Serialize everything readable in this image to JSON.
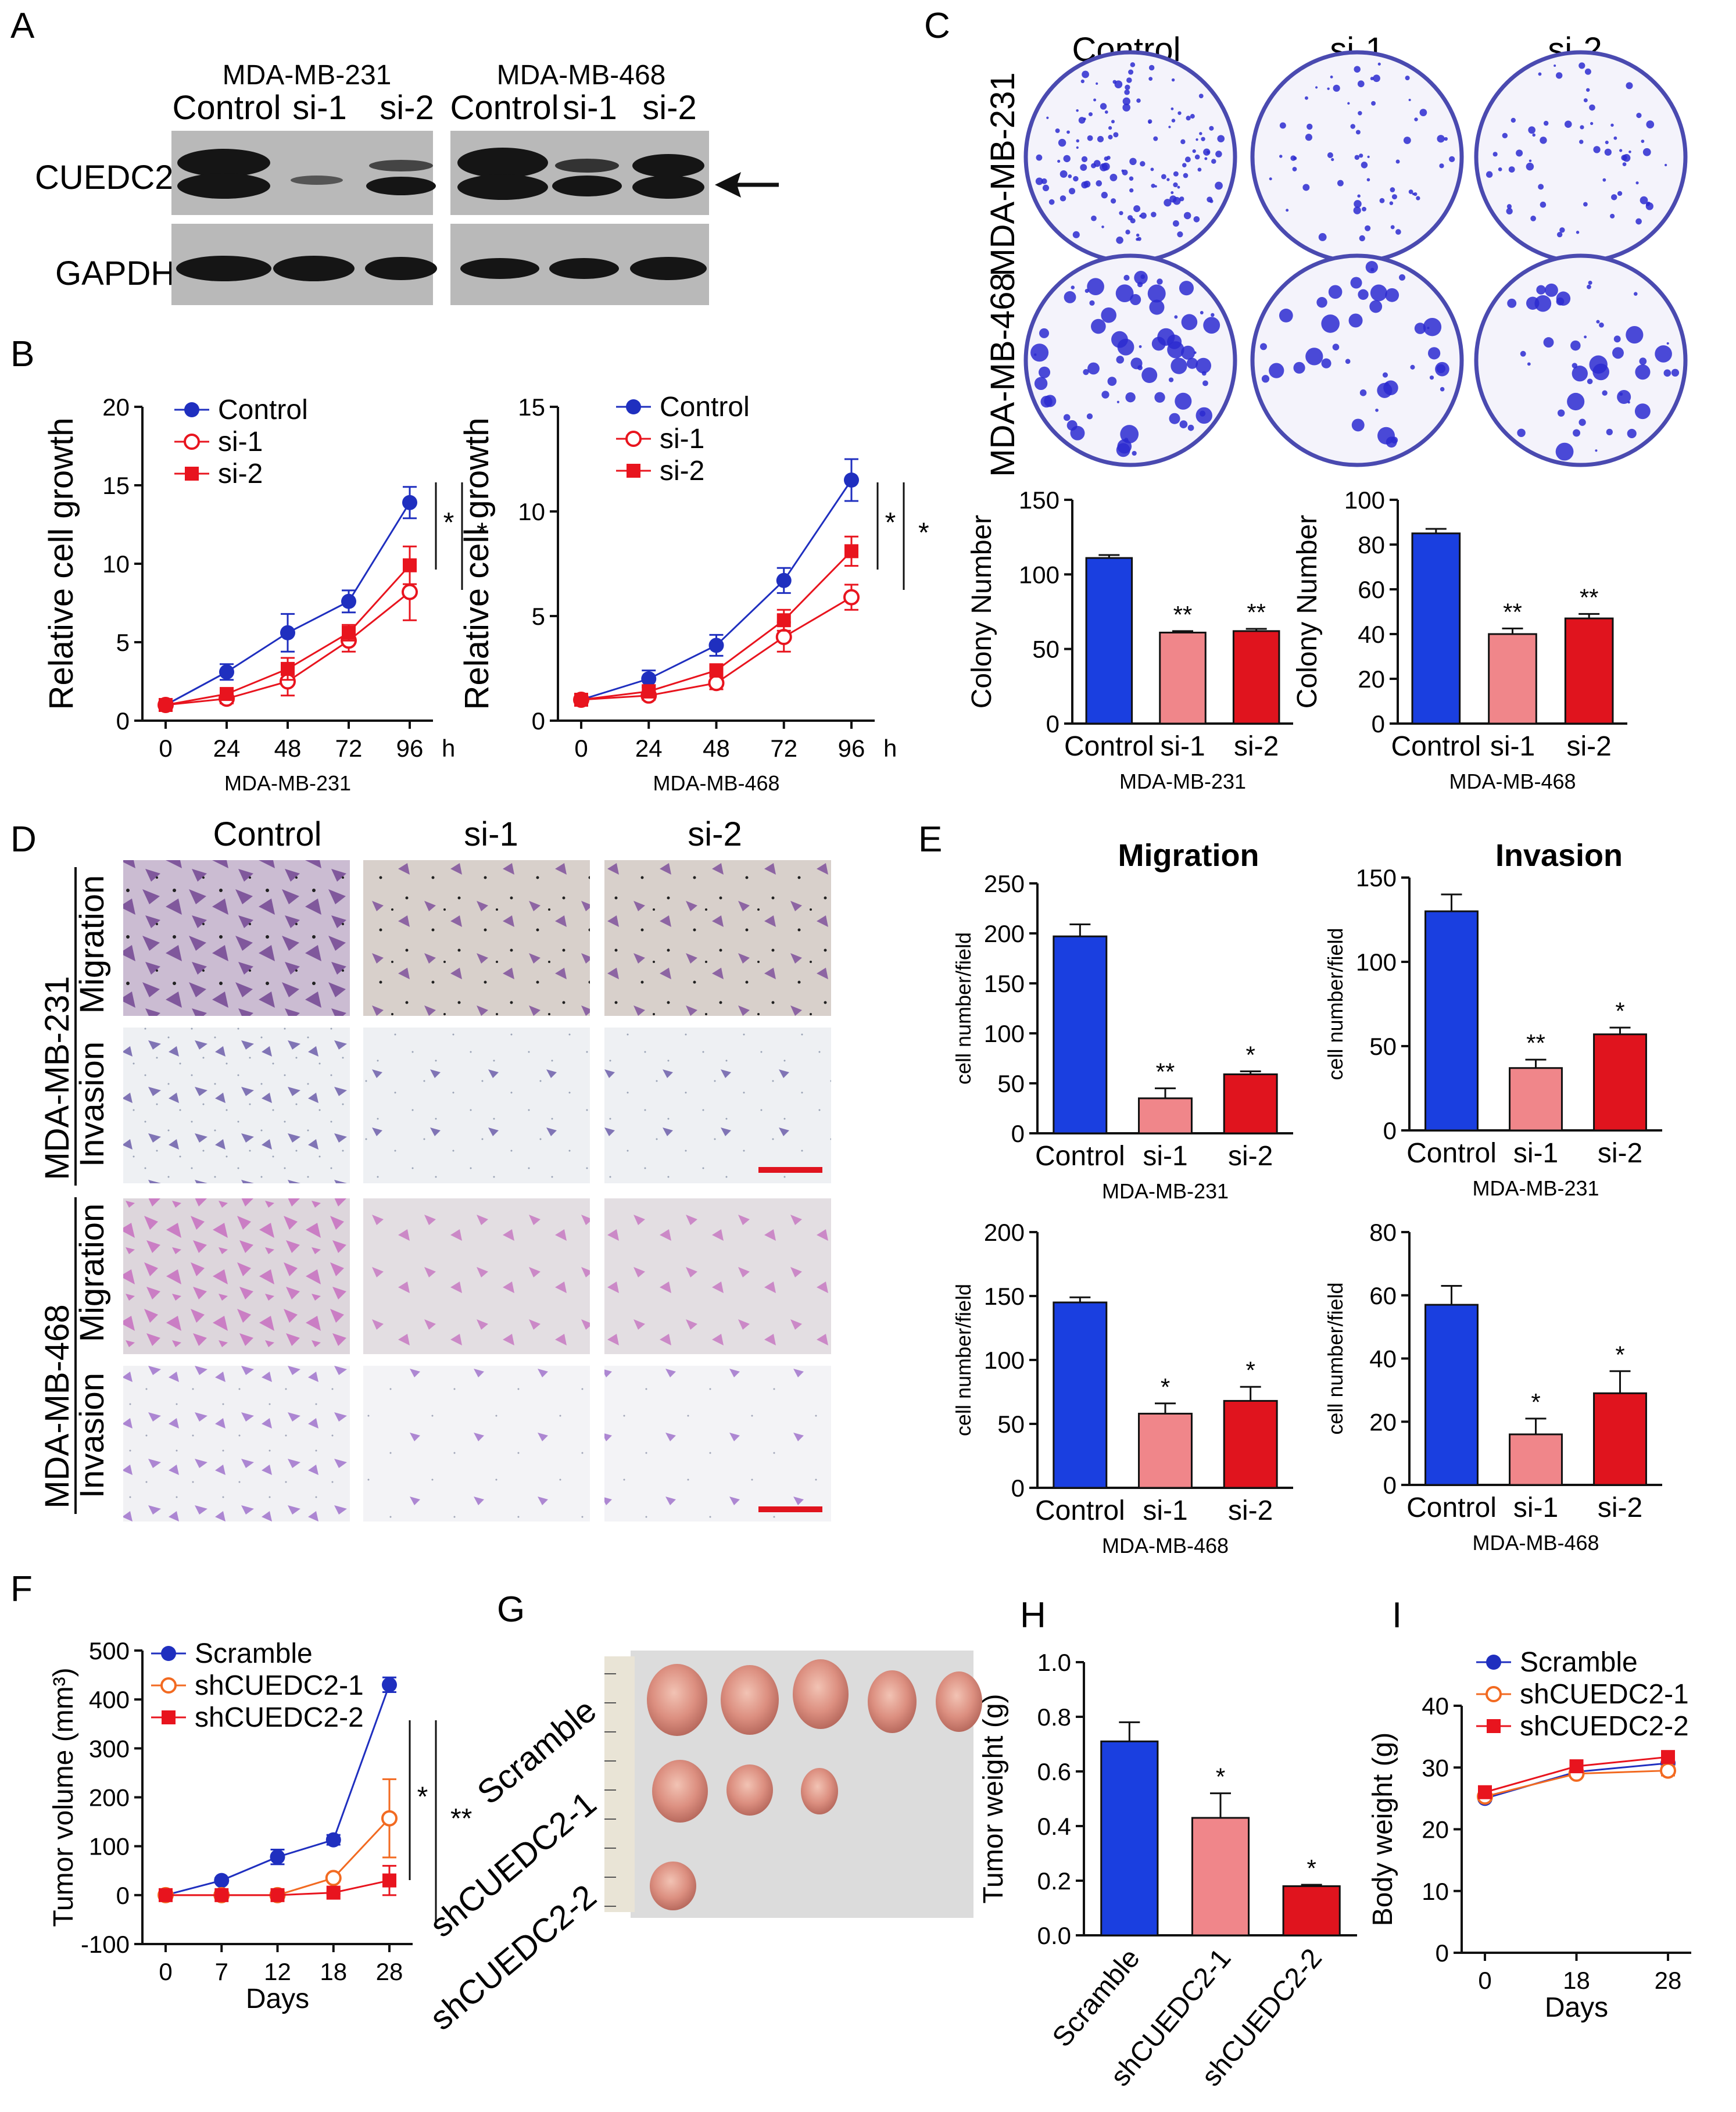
{
  "panels": {
    "A": {
      "label": "A",
      "cell_lines": [
        "MDA-MB-231",
        "MDA-MB-468"
      ],
      "lanes": [
        "Control",
        "si-1",
        "si-2"
      ],
      "proteins": [
        "CUEDC2",
        "GAPDH"
      ]
    },
    "B": {
      "label": "B"
    },
    "C": {
      "label": "C",
      "columns": [
        "Control",
        "si-1",
        "si-2"
      ],
      "rows": [
        "MDA-MB-231",
        "MDA-MB-468"
      ]
    },
    "D": {
      "label": "D",
      "columns": [
        "Control",
        "si-1",
        "si-2"
      ],
      "cell_lines": [
        "MDA-MB-231",
        "MDA-MB-468"
      ],
      "assays": [
        "Migration",
        "Invasion"
      ]
    },
    "E": {
      "label": "E",
      "titles": [
        "Migration",
        "Invasion"
      ]
    },
    "F": {
      "label": "F"
    },
    "G": {
      "label": "G",
      "groups": [
        "Scramble",
        "shCUEDC2-1",
        "shCUEDC2-2"
      ]
    },
    "H": {
      "label": "H"
    },
    "I": {
      "label": "I"
    }
  },
  "chart_data": [
    {
      "id": "B1",
      "type": "line",
      "x": [
        0,
        24,
        48,
        72,
        96
      ],
      "xunit": "h",
      "xlabel": "MDA-MB-231",
      "ylabel": "Relative cell growth",
      "ylim": [
        0,
        20
      ],
      "yticks": [
        0,
        5,
        10,
        15,
        20
      ],
      "series": [
        {
          "name": "Control",
          "values": [
            1.0,
            3.1,
            5.6,
            7.6,
            13.9
          ],
          "err": [
            0.2,
            0.5,
            1.2,
            0.7,
            1.0
          ],
          "color": "#1f2fbf",
          "marker": "filled-circle"
        },
        {
          "name": "si-1",
          "values": [
            1.0,
            1.4,
            2.5,
            5.1,
            8.2
          ],
          "err": [
            0.2,
            0.3,
            0.9,
            0.7,
            1.8
          ],
          "color": "#e8141e",
          "marker": "open-circle"
        },
        {
          "name": "si-2",
          "values": [
            1.0,
            1.7,
            3.3,
            5.6,
            9.9
          ],
          "err": [
            0.2,
            0.3,
            0.7,
            0.5,
            1.2
          ],
          "color": "#e8141e",
          "marker": "filled-square"
        }
      ],
      "significance": [
        "*",
        "*"
      ]
    },
    {
      "id": "B2",
      "type": "line",
      "x": [
        0,
        24,
        48,
        72,
        96
      ],
      "xunit": "h",
      "xlabel": "MDA-MB-468",
      "ylabel": "Relative cell growth",
      "ylim": [
        0,
        15
      ],
      "yticks": [
        0,
        5,
        10,
        15
      ],
      "series": [
        {
          "name": "Control",
          "values": [
            1.0,
            2.0,
            3.6,
            6.7,
            11.5
          ],
          "err": [
            0.2,
            0.4,
            0.5,
            0.6,
            1.0
          ],
          "color": "#1f2fbf",
          "marker": "filled-circle"
        },
        {
          "name": "si-1",
          "values": [
            1.0,
            1.2,
            1.8,
            4.0,
            5.9
          ],
          "err": [
            0.2,
            0.2,
            0.3,
            0.7,
            0.6
          ],
          "color": "#e8141e",
          "marker": "open-circle"
        },
        {
          "name": "si-2",
          "values": [
            1.0,
            1.4,
            2.4,
            4.8,
            8.1
          ],
          "err": [
            0.2,
            0.3,
            0.3,
            0.5,
            0.7
          ],
          "color": "#e8141e",
          "marker": "filled-square"
        }
      ],
      "significance": [
        "*",
        "*"
      ]
    },
    {
      "id": "C1",
      "type": "bar",
      "categories": [
        "Control",
        "si-1",
        "si-2"
      ],
      "values": [
        111,
        61,
        62
      ],
      "err": [
        2,
        1,
        1.5
      ],
      "stars": [
        "",
        "**",
        "**"
      ],
      "ylabel": "Colony Number",
      "xlabel": "MDA-MB-231",
      "ylim": [
        0,
        150
      ],
      "yticks": [
        0,
        50,
        100,
        150
      ]
    },
    {
      "id": "C2",
      "type": "bar",
      "categories": [
        "Control",
        "si-1",
        "si-2"
      ],
      "values": [
        85,
        40,
        47
      ],
      "err": [
        2,
        2.5,
        2
      ],
      "stars": [
        "",
        "**",
        "**"
      ],
      "ylabel": "Colony Number",
      "xlabel": "MDA-MB-468",
      "ylim": [
        0,
        100
      ],
      "yticks": [
        0,
        20,
        40,
        60,
        80,
        100
      ]
    },
    {
      "id": "E1",
      "type": "bar",
      "title": "Migration",
      "categories": [
        "Control",
        "si-1",
        "si-2"
      ],
      "values": [
        197,
        35,
        59
      ],
      "err": [
        12,
        10,
        3
      ],
      "stars": [
        "",
        "**",
        "*"
      ],
      "ylabel": "cell number/field",
      "xlabel": "MDA-MB-231",
      "ylim": [
        0,
        250
      ],
      "yticks": [
        0,
        50,
        100,
        150,
        200,
        250
      ]
    },
    {
      "id": "E2",
      "type": "bar",
      "title": "Invasion",
      "categories": [
        "Control",
        "si-1",
        "si-2"
      ],
      "values": [
        130,
        37,
        57
      ],
      "err": [
        10,
        5,
        4
      ],
      "stars": [
        "",
        "**",
        "*"
      ],
      "ylabel": "cell number/field",
      "xlabel": "MDA-MB-231",
      "ylim": [
        0,
        150
      ],
      "yticks": [
        0,
        50,
        100,
        150
      ]
    },
    {
      "id": "E3",
      "type": "bar",
      "categories": [
        "Control",
        "si-1",
        "si-2"
      ],
      "values": [
        145,
        58,
        68
      ],
      "err": [
        4,
        8,
        11
      ],
      "stars": [
        "",
        "*",
        "*"
      ],
      "ylabel": "cell number/field",
      "xlabel": "MDA-MB-468",
      "ylim": [
        0,
        200
      ],
      "yticks": [
        0,
        50,
        100,
        150,
        200
      ]
    },
    {
      "id": "E4",
      "type": "bar",
      "categories": [
        "Control",
        "si-1",
        "si-2"
      ],
      "values": [
        57,
        16,
        29
      ],
      "err": [
        6,
        5,
        7
      ],
      "stars": [
        "",
        "*",
        "*"
      ],
      "ylabel": "cell number/field",
      "xlabel": "MDA-MB-468",
      "ylim": [
        0,
        80
      ],
      "yticks": [
        0,
        20,
        40,
        60,
        80
      ]
    },
    {
      "id": "F",
      "type": "line",
      "x": [
        0,
        7,
        12,
        18,
        28
      ],
      "xlabel": "Days",
      "ylabel": "Tumor volume (mm³)",
      "ylim": [
        -100,
        500
      ],
      "yticks": [
        -100,
        0,
        100,
        200,
        300,
        400,
        500
      ],
      "series": [
        {
          "name": "Scramble",
          "values": [
            0,
            30,
            78,
            113,
            430
          ],
          "err": [
            3,
            5,
            15,
            10,
            15
          ],
          "color": "#1f2fbf",
          "marker": "filled-circle"
        },
        {
          "name": "shCUEDC2-1",
          "values": [
            0,
            0,
            0,
            35,
            157
          ],
          "err": [
            2,
            2,
            2,
            5,
            80
          ],
          "color": "#f26a21",
          "marker": "open-circle"
        },
        {
          "name": "shCUEDC2-2",
          "values": [
            0,
            0,
            0,
            5,
            30
          ],
          "err": [
            2,
            2,
            2,
            3,
            30
          ],
          "color": "#e8141e",
          "marker": "filled-square"
        }
      ],
      "significance": [
        "*",
        "**"
      ]
    },
    {
      "id": "H",
      "type": "bar",
      "categories": [
        "Scramble",
        "shCUEDC2-1",
        "shCUEDC2-2"
      ],
      "values": [
        0.71,
        0.43,
        0.18
      ],
      "err": [
        0.07,
        0.09,
        0.005
      ],
      "stars": [
        "",
        "*",
        "*"
      ],
      "ylabel": "Tumor weight (g)",
      "ylim": [
        0,
        1.0
      ],
      "yticks": [
        "0.0",
        "0.2",
        "0.4",
        "0.6",
        "0.8",
        "1.0"
      ]
    },
    {
      "id": "I",
      "type": "line",
      "x": [
        0,
        18,
        28
      ],
      "xlabel": "Days",
      "ylabel": "Body weight (g)",
      "ylim": [
        0,
        40
      ],
      "yticks": [
        0,
        10,
        20,
        30,
        40
      ],
      "series": [
        {
          "name": "Scramble",
          "values": [
            25,
            29.3,
            30.7
          ],
          "err": [
            0.4,
            0.5,
            0.8
          ],
          "color": "#1f2fbf",
          "marker": "filled-circle"
        },
        {
          "name": "shCUEDC2-1",
          "values": [
            25.3,
            29,
            29.5
          ],
          "err": [
            0.4,
            0.5,
            0.8
          ],
          "color": "#f26a21",
          "marker": "open-circle"
        },
        {
          "name": "shCUEDC2-2",
          "values": [
            26,
            30.2,
            31.7
          ],
          "err": [
            0.4,
            0.5,
            0.8
          ],
          "color": "#e8141e",
          "marker": "filled-square"
        }
      ]
    }
  ]
}
